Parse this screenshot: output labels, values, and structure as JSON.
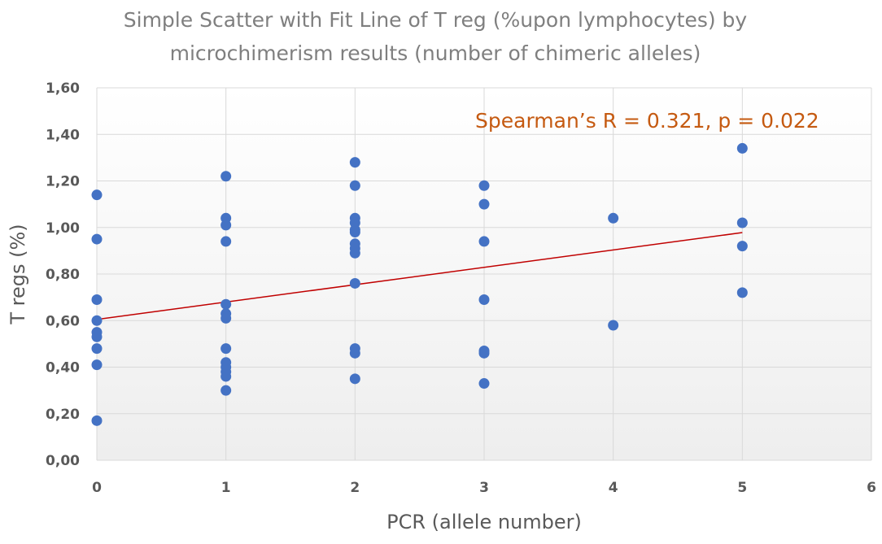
{
  "chart_data": {
    "type": "scatter",
    "title_lines": [
      "Simple Scatter with Fit Line of T reg (%upon lymphocytes) by",
      "microchimerism results (number of chimeric alleles)"
    ],
    "xlabel": "PCR (allele number)",
    "ylabel": "T regs (%)",
    "xlim": [
      0,
      6
    ],
    "ylim": [
      0,
      1.6
    ],
    "x_ticks": [
      "0",
      "1",
      "2",
      "3",
      "4",
      "5",
      "6"
    ],
    "y_ticks": [
      "0,00",
      "0,20",
      "0,40",
      "0,60",
      "0,80",
      "1,00",
      "1,20",
      "1,40",
      "1,60"
    ],
    "grid": true,
    "annotation": "Spearman’s R = 0.321, p = 0.022",
    "fit_line": {
      "x": [
        0,
        5
      ],
      "y": [
        0.605,
        0.978
      ]
    },
    "points": [
      {
        "x": 0,
        "y": 1.14
      },
      {
        "x": 0,
        "y": 0.95
      },
      {
        "x": 0,
        "y": 0.69
      },
      {
        "x": 0,
        "y": 0.6
      },
      {
        "x": 0,
        "y": 0.55
      },
      {
        "x": 0,
        "y": 0.53
      },
      {
        "x": 0,
        "y": 0.48
      },
      {
        "x": 0,
        "y": 0.41
      },
      {
        "x": 0,
        "y": 0.17
      },
      {
        "x": 1,
        "y": 1.22
      },
      {
        "x": 1,
        "y": 1.04
      },
      {
        "x": 1,
        "y": 1.01
      },
      {
        "x": 1,
        "y": 0.94
      },
      {
        "x": 1,
        "y": 0.67
      },
      {
        "x": 1,
        "y": 0.63
      },
      {
        "x": 1,
        "y": 0.61
      },
      {
        "x": 1,
        "y": 0.48
      },
      {
        "x": 1,
        "y": 0.42
      },
      {
        "x": 1,
        "y": 0.4
      },
      {
        "x": 1,
        "y": 0.38
      },
      {
        "x": 1,
        "y": 0.36
      },
      {
        "x": 1,
        "y": 0.3
      },
      {
        "x": 2,
        "y": 1.28
      },
      {
        "x": 2,
        "y": 1.18
      },
      {
        "x": 2,
        "y": 1.04
      },
      {
        "x": 2,
        "y": 1.02
      },
      {
        "x": 2,
        "y": 0.99
      },
      {
        "x": 2,
        "y": 0.98
      },
      {
        "x": 2,
        "y": 0.93
      },
      {
        "x": 2,
        "y": 0.91
      },
      {
        "x": 2,
        "y": 0.89
      },
      {
        "x": 2,
        "y": 0.76
      },
      {
        "x": 2,
        "y": 0.48
      },
      {
        "x": 2,
        "y": 0.46
      },
      {
        "x": 2,
        "y": 0.35
      },
      {
        "x": 3,
        "y": 1.18
      },
      {
        "x": 3,
        "y": 1.1
      },
      {
        "x": 3,
        "y": 0.94
      },
      {
        "x": 3,
        "y": 0.69
      },
      {
        "x": 3,
        "y": 0.47
      },
      {
        "x": 3,
        "y": 0.46
      },
      {
        "x": 3,
        "y": 0.33
      },
      {
        "x": 4,
        "y": 1.04
      },
      {
        "x": 4,
        "y": 0.58
      },
      {
        "x": 5,
        "y": 1.34
      },
      {
        "x": 5,
        "y": 1.02
      },
      {
        "x": 5,
        "y": 0.92
      },
      {
        "x": 5,
        "y": 0.72
      }
    ],
    "colors": {
      "points": "#4472c4",
      "fit_line": "#c00000",
      "annotation": "#c55a11"
    }
  }
}
